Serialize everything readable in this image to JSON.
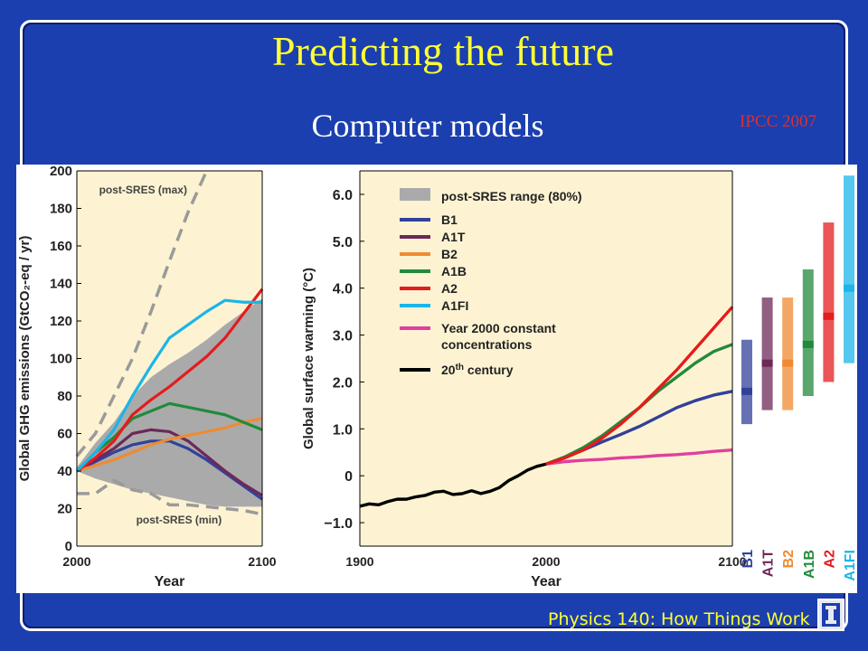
{
  "slide": {
    "title": "Predicting the future",
    "subtitle": "Computer models",
    "source": "IPCC 2007",
    "footer": "Physics 140: How Things Work",
    "logo_letter": "I"
  },
  "colors": {
    "background": "#1b3fae",
    "title": "#ffff33",
    "source": "#d93030",
    "panel_bg": "#fdf3d2",
    "range_gray": "#aaaaaa",
    "B1": "#31419a",
    "A1T": "#6e2858",
    "B2": "#f08a32",
    "A1B": "#228a3c",
    "A2": "#e41c1c",
    "A1FI": "#1bb5e8",
    "constant": "#e03fa0",
    "century20": "#000000"
  },
  "chart_data": [
    {
      "type": "line",
      "ylabel": "Global GHG emissions (GtCO₂-eq / yr)",
      "xlabel": "Year",
      "xlim": [
        2000,
        2100
      ],
      "ylim": [
        0,
        200
      ],
      "xticks": [
        "2000",
        "2100"
      ],
      "yticks": [
        "0",
        "20",
        "40",
        "60",
        "80",
        "100",
        "120",
        "140",
        "160",
        "180",
        "200"
      ],
      "annotations": [
        "post-SRES (max)",
        "post-SRES (min)"
      ],
      "range_band": {
        "x": [
          2000,
          2010,
          2020,
          2030,
          2040,
          2050,
          2060,
          2070,
          2080,
          2090,
          2100
        ],
        "upper": [
          42,
          55,
          66,
          80,
          90,
          97,
          103,
          110,
          118,
          125,
          132
        ],
        "lower": [
          40,
          36,
          33,
          30,
          28,
          26,
          24,
          22,
          21,
          21,
          21
        ]
      },
      "dashed_max": {
        "x": [
          2000,
          2010,
          2020,
          2030,
          2040,
          2050,
          2060,
          2070
        ],
        "y": [
          48,
          60,
          80,
          100,
          125,
          152,
          178,
          200
        ]
      },
      "dashed_min": {
        "x": [
          2000,
          2010,
          2020,
          2030,
          2040,
          2050,
          2060,
          2070,
          2080,
          2090,
          2100
        ],
        "y": [
          28,
          28,
          35,
          30,
          28,
          22,
          22,
          21,
          20,
          19,
          17
        ]
      },
      "series": [
        {
          "name": "B1",
          "x": [
            2000,
            2010,
            2020,
            2030,
            2040,
            2050,
            2060,
            2070,
            2080,
            2090,
            2100
          ],
          "y": [
            40,
            45,
            50,
            54,
            56,
            56,
            52,
            46,
            39,
            32,
            25
          ]
        },
        {
          "name": "A1T",
          "x": [
            2000,
            2010,
            2020,
            2030,
            2040,
            2050,
            2060,
            2070,
            2080,
            2090,
            2100
          ],
          "y": [
            40,
            46,
            52,
            60,
            62,
            61,
            56,
            48,
            40,
            33,
            27
          ]
        },
        {
          "name": "B2",
          "x": [
            2000,
            2010,
            2020,
            2030,
            2040,
            2050,
            2060,
            2070,
            2080,
            2090,
            2100
          ],
          "y": [
            40,
            43,
            46,
            50,
            54,
            57,
            59,
            61,
            63,
            66,
            68
          ]
        },
        {
          "name": "A1B",
          "x": [
            2000,
            2010,
            2020,
            2030,
            2040,
            2050,
            2060,
            2070,
            2080,
            2090,
            2100
          ],
          "y": [
            40,
            50,
            58,
            68,
            72,
            76,
            74,
            72,
            70,
            66,
            62
          ]
        },
        {
          "name": "A2",
          "x": [
            2000,
            2010,
            2020,
            2030,
            2040,
            2050,
            2060,
            2070,
            2080,
            2090,
            2100
          ],
          "y": [
            40,
            47,
            56,
            70,
            78,
            85,
            93,
            101,
            111,
            124,
            137
          ]
        },
        {
          "name": "A1FI",
          "x": [
            2000,
            2010,
            2020,
            2030,
            2040,
            2050,
            2060,
            2070,
            2080,
            2090,
            2100
          ],
          "y": [
            40,
            50,
            62,
            80,
            96,
            111,
            118,
            125,
            131,
            130,
            130
          ]
        }
      ]
    },
    {
      "type": "line",
      "ylabel": "Global surface warming (°C)",
      "xlabel": "Year",
      "xlim": [
        1900,
        2100
      ],
      "ylim": [
        -1.5,
        6.5
      ],
      "xticks": [
        "1900",
        "2000",
        "2100"
      ],
      "yticks": [
        "6.0",
        "5.0",
        "4.0",
        "3.0",
        "2.0",
        "1.0",
        "0",
        "−1.0"
      ],
      "legend": {
        "position": "top-left",
        "range_label": "post-SRES range (80%)",
        "entries": [
          "B1",
          "A1T",
          "B2",
          "A1B",
          "A2",
          "A1FI",
          "Year 2000 constant",
          "concentrations",
          "20",
          "th",
          " century"
        ]
      },
      "series": [
        {
          "name": "20th century",
          "x": [
            1900,
            1905,
            1910,
            1915,
            1920,
            1925,
            1930,
            1935,
            1940,
            1945,
            1950,
            1955,
            1960,
            1965,
            1970,
            1975,
            1980,
            1985,
            1990,
            1995,
            2000
          ],
          "y": [
            -0.65,
            -0.6,
            -0.62,
            -0.55,
            -0.5,
            -0.5,
            -0.45,
            -0.42,
            -0.35,
            -0.33,
            -0.4,
            -0.38,
            -0.32,
            -0.38,
            -0.33,
            -0.25,
            -0.1,
            0.0,
            0.12,
            0.2,
            0.25
          ]
        },
        {
          "name": "Year 2000 constant concentrations",
          "x": [
            2000,
            2010,
            2020,
            2030,
            2040,
            2050,
            2060,
            2070,
            2080,
            2090,
            2100
          ],
          "y": [
            0.25,
            0.3,
            0.33,
            0.35,
            0.38,
            0.4,
            0.43,
            0.45,
            0.48,
            0.52,
            0.55
          ]
        },
        {
          "name": "B1",
          "x": [
            2000,
            2010,
            2020,
            2030,
            2040,
            2050,
            2060,
            2070,
            2080,
            2090,
            2100
          ],
          "y": [
            0.25,
            0.4,
            0.55,
            0.72,
            0.88,
            1.05,
            1.25,
            1.45,
            1.6,
            1.72,
            1.8
          ]
        },
        {
          "name": "A1B",
          "x": [
            2000,
            2010,
            2020,
            2030,
            2040,
            2050,
            2060,
            2070,
            2080,
            2090,
            2100
          ],
          "y": [
            0.25,
            0.4,
            0.6,
            0.85,
            1.15,
            1.45,
            1.8,
            2.1,
            2.4,
            2.65,
            2.8
          ]
        },
        {
          "name": "A2",
          "x": [
            2000,
            2010,
            2020,
            2030,
            2040,
            2050,
            2060,
            2070,
            2080,
            2090,
            2100
          ],
          "y": [
            0.25,
            0.38,
            0.55,
            0.8,
            1.1,
            1.45,
            1.85,
            2.25,
            2.7,
            3.15,
            3.6
          ]
        }
      ],
      "bars": [
        {
          "name": "B1",
          "low": 1.1,
          "high": 2.9,
          "best": 1.8
        },
        {
          "name": "A1T",
          "low": 1.4,
          "high": 3.8,
          "best": 2.4
        },
        {
          "name": "B2",
          "low": 1.4,
          "high": 3.8,
          "best": 2.4
        },
        {
          "name": "A1B",
          "low": 1.7,
          "high": 4.4,
          "best": 2.8
        },
        {
          "name": "A2",
          "low": 2.0,
          "high": 5.4,
          "best": 3.4
        },
        {
          "name": "A1FI",
          "low": 2.4,
          "high": 6.4,
          "best": 4.0
        }
      ]
    }
  ]
}
